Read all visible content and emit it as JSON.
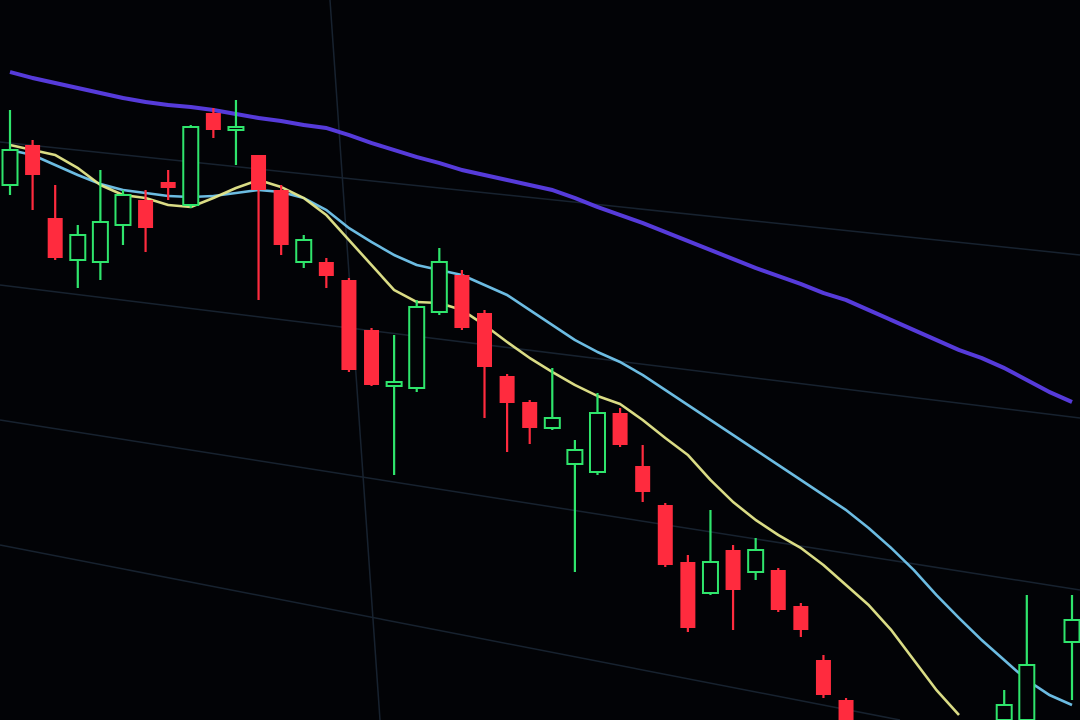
{
  "chart_data": {
    "type": "candlestick",
    "categories": [
      null,
      null,
      null,
      null,
      null,
      null,
      null,
      null,
      null,
      null,
      null,
      null,
      null,
      null,
      null,
      null,
      null,
      null,
      null,
      null,
      null,
      null,
      null,
      null,
      null,
      null,
      null,
      null,
      null,
      null,
      null,
      null,
      null,
      null,
      null,
      null,
      null,
      null,
      null,
      null,
      null,
      null,
      null,
      null,
      null,
      null,
      null,
      null
    ],
    "open": [
      535,
      575,
      502,
      460,
      458,
      495,
      520,
      538,
      515,
      607,
      590,
      565,
      530,
      458,
      458,
      440,
      390,
      334,
      332,
      408,
      445,
      407,
      344,
      318,
      292,
      256,
      248,
      307,
      254,
      215,
      158,
      127,
      170,
      148,
      150,
      114,
      60,
      20,
      null,
      null,
      null,
      null,
      null,
      null,
      0,
      0,
      null,
      78
    ],
    "high": [
      610,
      580,
      535,
      495,
      550,
      530,
      530,
      550,
      595,
      612,
      620,
      565,
      535,
      485,
      462,
      442,
      392,
      385,
      420,
      472,
      450,
      410,
      346,
      320,
      352,
      280,
      327,
      312,
      275,
      217,
      165,
      210,
      175,
      182,
      152,
      117,
      65,
      22,
      null,
      null,
      null,
      null,
      null,
      null,
      30,
      125,
      null,
      125
    ],
    "low": [
      525,
      510,
      460,
      432,
      440,
      475,
      468,
      520,
      512,
      582,
      555,
      420,
      465,
      452,
      432,
      348,
      334,
      245,
      328,
      405,
      390,
      302,
      268,
      276,
      290,
      148,
      245,
      273,
      218,
      153,
      88,
      125,
      90,
      140,
      108,
      83,
      22,
      0,
      null,
      null,
      null,
      null,
      null,
      null,
      0,
      0,
      null,
      20
    ],
    "close": [
      570,
      545,
      462,
      485,
      498,
      525,
      492,
      532,
      593,
      590,
      593,
      530,
      475,
      480,
      444,
      350,
      335,
      338,
      413,
      458,
      392,
      353,
      317,
      292,
      302,
      270,
      307,
      275,
      228,
      155,
      92,
      158,
      130,
      170,
      110,
      90,
      25,
      0,
      null,
      null,
      null,
      null,
      null,
      null,
      15,
      55,
      null,
      100
    ],
    "up_color": "#2fe56c",
    "down_color": "#ff2b3e",
    "series": [
      {
        "color": "#5b3ee6",
        "values": [
          648,
          642,
          637,
          632,
          627,
          622,
          618,
          615,
          613,
          610,
          606,
          602,
          599,
          595,
          592,
          585,
          577,
          570,
          563,
          557,
          550,
          545,
          540,
          535,
          530,
          522,
          513,
          505,
          497,
          488,
          479,
          470,
          461,
          452,
          444,
          436,
          427,
          420,
          410,
          400,
          390,
          380,
          370,
          362,
          352,
          340,
          328,
          318
        ]
      },
      {
        "color": "#72c6ee",
        "values": [
          570,
          565,
          555,
          545,
          536,
          530,
          527,
          524,
          523,
          524,
          527,
          530,
          528,
          522,
          510,
          492,
          478,
          465,
          455,
          450,
          445,
          435,
          425,
          410,
          395,
          380,
          368,
          358,
          345,
          330,
          315,
          300,
          285,
          270,
          255,
          240,
          225,
          210,
          192,
          172,
          150,
          125,
          102,
          80,
          60,
          40,
          25,
          15
        ]
      },
      {
        "color": "#e6e88c",
        "values": [
          575,
          570,
          565,
          552,
          535,
          525,
          522,
          515,
          513,
          522,
          532,
          540,
          533,
          522,
          505,
          480,
          455,
          430,
          418,
          417,
          410,
          395,
          378,
          362,
          348,
          335,
          324,
          316,
          300,
          282,
          265,
          240,
          218,
          200,
          185,
          172,
          155,
          135,
          115,
          90,
          60,
          30,
          5,
          null,
          null,
          null,
          null,
          null
        ]
      }
    ]
  }
}
